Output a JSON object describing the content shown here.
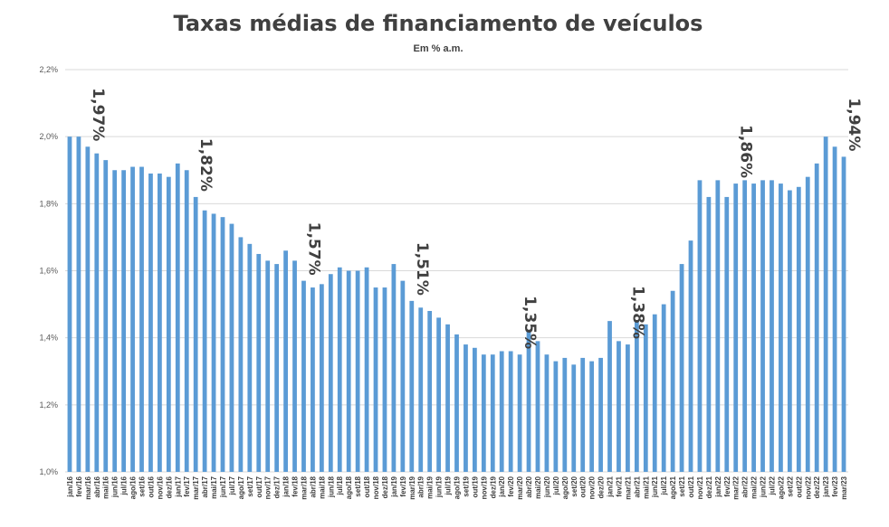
{
  "chart_data": {
    "type": "bar",
    "title": "Taxas médias de financiamento de veículos",
    "subtitle": "Em % a.m.",
    "xlabel": "",
    "ylabel": "",
    "ylim": [
      1.0,
      2.2
    ],
    "yticks": [
      1.0,
      1.2,
      1.4,
      1.6,
      1.8,
      2.0,
      2.2
    ],
    "ytick_labels": [
      "1,0%",
      "1,2%",
      "1,4%",
      "1,6%",
      "1,8%",
      "2,0%",
      "2,2%"
    ],
    "grid": true,
    "legend": "none",
    "bar_color": "#5b9bd5",
    "categories": [
      "jan/16",
      "fev/16",
      "mar/16",
      "abr/16",
      "mai/16",
      "jun/16",
      "jul/16",
      "ago/16",
      "set/16",
      "out/16",
      "nov/16",
      "dez/16",
      "jan/17",
      "fev/17",
      "mar/17",
      "abr/17",
      "mai/17",
      "jun/17",
      "jul/17",
      "ago/17",
      "set/17",
      "out/17",
      "nov/17",
      "dez/17",
      "jan/18",
      "fev/18",
      "mar/18",
      "abr/18",
      "mai/18",
      "jun/18",
      "jul/18",
      "ago/18",
      "set/18",
      "out/18",
      "nov/18",
      "dez/18",
      "jan/19",
      "fev/19",
      "mar/19",
      "abr/19",
      "mai/19",
      "jun/19",
      "jul/19",
      "ago/19",
      "set/19",
      "out/19",
      "nov/19",
      "dez/19",
      "jan/20",
      "fev/20",
      "mar/20",
      "abr/20",
      "mai/20",
      "jun/20",
      "jul/20",
      "ago/20",
      "set/20",
      "out/20",
      "nov/20",
      "dez/20",
      "jan/21",
      "fev/21",
      "mar/21",
      "abr/21",
      "mai/21",
      "jun/21",
      "jul/21",
      "ago/21",
      "set/21",
      "out/21",
      "nov/21",
      "dez/21",
      "jan/22",
      "fev/22",
      "mar/22",
      "abr/22",
      "mai/22",
      "jun/22",
      "jul/22",
      "ago/22",
      "set/22",
      "out/22",
      "nov/22",
      "dez/22",
      "jan/23",
      "fev/23",
      "mar/23"
    ],
    "values": [
      2.0,
      2.0,
      1.97,
      1.95,
      1.93,
      1.9,
      1.9,
      1.91,
      1.91,
      1.89,
      1.89,
      1.88,
      1.92,
      1.9,
      1.82,
      1.78,
      1.77,
      1.76,
      1.74,
      1.7,
      1.68,
      1.65,
      1.63,
      1.62,
      1.66,
      1.63,
      1.57,
      1.55,
      1.56,
      1.59,
      1.61,
      1.6,
      1.6,
      1.61,
      1.55,
      1.55,
      1.62,
      1.57,
      1.51,
      1.49,
      1.48,
      1.46,
      1.44,
      1.41,
      1.38,
      1.37,
      1.35,
      1.35,
      1.36,
      1.36,
      1.35,
      1.42,
      1.39,
      1.35,
      1.33,
      1.34,
      1.32,
      1.34,
      1.33,
      1.34,
      1.45,
      1.39,
      1.38,
      1.45,
      1.44,
      1.47,
      1.5,
      1.54,
      1.62,
      1.69,
      1.87,
      1.82,
      1.87,
      1.82,
      1.86,
      1.87,
      1.86,
      1.87,
      1.87,
      1.86,
      1.84,
      1.85,
      1.88,
      1.92,
      2.0,
      1.97,
      1.94
    ],
    "data_labels": [
      {
        "index": 2,
        "text": "1,97%"
      },
      {
        "index": 14,
        "text": "1,82%"
      },
      {
        "index": 26,
        "text": "1,57%"
      },
      {
        "index": 38,
        "text": "1,51%"
      },
      {
        "index": 50,
        "text": "1,35%"
      },
      {
        "index": 62,
        "text": "1,38%"
      },
      {
        "index": 74,
        "text": "1,86%"
      },
      {
        "index": 86,
        "text": "1,94%"
      }
    ]
  }
}
